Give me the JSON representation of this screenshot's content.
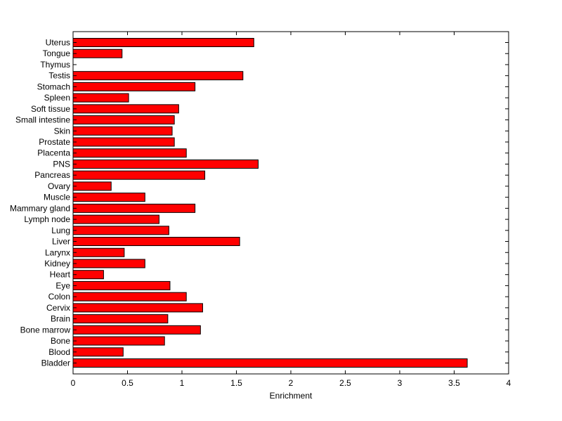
{
  "chart_data": {
    "type": "bar",
    "orientation": "horizontal",
    "title": "",
    "xlabel": "Enrichment",
    "ylabel": "",
    "xlim": [
      0,
      4
    ],
    "xticks": [
      "0",
      "0.5",
      "1",
      "1.5",
      "2",
      "2.5",
      "3",
      "3.5",
      "4"
    ],
    "grid": false,
    "bar_color": "#ff0000",
    "bar_edge_color": "#000000",
    "categories": [
      "Bladder",
      "Blood",
      "Bone",
      "Bone marrow",
      "Brain",
      "Cervix",
      "Colon",
      "Eye",
      "Heart",
      "Kidney",
      "Larynx",
      "Liver",
      "Lung",
      "Lymph node",
      "Mammary gland",
      "Muscle",
      "Ovary",
      "Pancreas",
      "PNS",
      "Placenta",
      "Prostate",
      "Skin",
      "Small intestine",
      "Soft tissue",
      "Spleen",
      "Stomach",
      "Testis",
      "Thymus",
      "Tongue",
      "Uterus"
    ],
    "values": [
      3.62,
      0.46,
      0.84,
      1.17,
      0.87,
      1.19,
      1.04,
      0.89,
      0.28,
      0.66,
      0.47,
      1.53,
      0.88,
      0.79,
      1.12,
      0.66,
      0.35,
      1.21,
      1.7,
      1.04,
      0.93,
      0.91,
      0.93,
      0.97,
      0.51,
      1.12,
      1.56,
      0.0,
      0.45,
      1.66
    ]
  }
}
